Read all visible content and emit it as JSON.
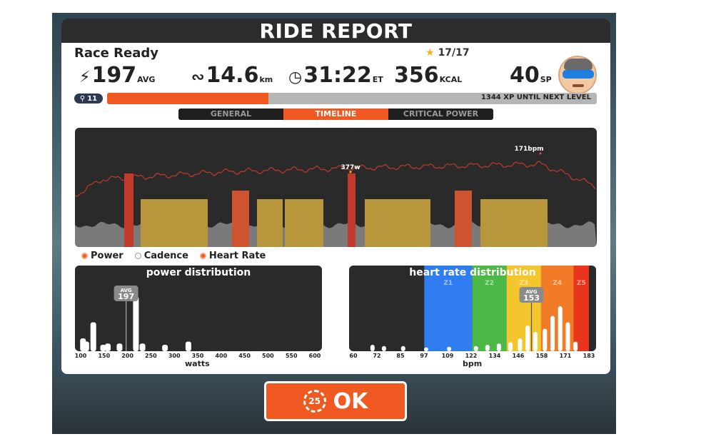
{
  "title": "RIDE REPORT",
  "route_name": "Race Ready",
  "badges": "17/17",
  "stats": {
    "power": {
      "value": "197",
      "unit": "AVG"
    },
    "distance": {
      "value": "14.6",
      "unit": "km"
    },
    "time": {
      "value": "31:22",
      "unit": "ET"
    },
    "calories": {
      "value": "356",
      "unit": "KCAL"
    },
    "sport_points": {
      "value": "40",
      "unit": "SP"
    }
  },
  "level": "11",
  "xp_text": "1344 XP UNTIL NEXT LEVEL",
  "xp_progress": 0.33,
  "tabs": [
    "GENERAL",
    "TIMELINE",
    "CRITICAL POWER"
  ],
  "active_tab": "TIMELINE",
  "timeline": {
    "power_peak_label": "377w",
    "hr_peak_label": "171bpm"
  },
  "legend": [
    {
      "label": "Power",
      "active": true
    },
    {
      "label": "Cadence",
      "active": false
    },
    {
      "label": "Heart Rate",
      "active": true
    }
  ],
  "power_distribution": {
    "title": "power distribution",
    "x_label": "watts",
    "ticks": [
      "100",
      "150",
      "200",
      "250",
      "300",
      "350",
      "400",
      "450",
      "500",
      "550",
      "600"
    ],
    "avg_label": "AVG",
    "avg_value": "197",
    "bars": [
      {
        "w": 105,
        "h": 0.2
      },
      {
        "w": 112,
        "h": 0.15
      },
      {
        "w": 127,
        "h": 0.45
      },
      {
        "w": 148,
        "h": 0.1
      },
      {
        "w": 158,
        "h": 0.12
      },
      {
        "w": 183,
        "h": 0.12
      },
      {
        "w": 218,
        "h": 0.85
      },
      {
        "w": 232,
        "h": 0.12
      },
      {
        "w": 280,
        "h": 0.1
      },
      {
        "w": 330,
        "h": 0.15
      }
    ]
  },
  "hr_distribution": {
    "title": "heart rate distribution",
    "x_label": "bpm",
    "ticks": [
      "60",
      "72",
      "85",
      "97",
      "109",
      "122",
      "134",
      "146",
      "158",
      "171",
      "183"
    ],
    "zones": [
      {
        "label": "Z1",
        "from": 97,
        "to": 122,
        "color": "#2f7df0"
      },
      {
        "label": "Z2",
        "from": 122,
        "to": 140,
        "color": "#4cb847"
      },
      {
        "label": "Z3",
        "from": 140,
        "to": 158,
        "color": "#f4c62d"
      },
      {
        "label": "Z4",
        "from": 158,
        "to": 175,
        "color": "#f17b26"
      },
      {
        "label": "Z5",
        "from": 175,
        "to": 183,
        "color": "#e8351c"
      }
    ],
    "avg_label": "AVG",
    "avg_value": "153",
    "bars": [
      {
        "b": 70,
        "h": 0.1
      },
      {
        "b": 76,
        "h": 0.08
      },
      {
        "b": 86,
        "h": 0.08
      },
      {
        "b": 98,
        "h": 0.06
      },
      {
        "b": 110,
        "h": 0.07
      },
      {
        "b": 124,
        "h": 0.08
      },
      {
        "b": 130,
        "h": 0.1
      },
      {
        "b": 136,
        "h": 0.12
      },
      {
        "b": 142,
        "h": 0.14
      },
      {
        "b": 147,
        "h": 0.2
      },
      {
        "b": 151,
        "h": 0.4
      },
      {
        "b": 155,
        "h": 0.3
      },
      {
        "b": 160,
        "h": 0.35
      },
      {
        "b": 164,
        "h": 0.55
      },
      {
        "b": 168,
        "h": 0.7
      },
      {
        "b": 172,
        "h": 0.45
      },
      {
        "b": 176,
        "h": 0.15
      }
    ]
  },
  "ok_button": {
    "label": "OK",
    "countdown": "25"
  },
  "colors": {
    "accent": "#f05a22",
    "dark": "#2a2a2a",
    "power_block": "#b8963c"
  }
}
